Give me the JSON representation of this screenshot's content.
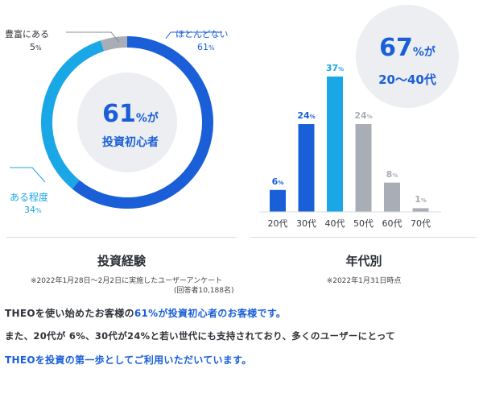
{
  "pie": {
    "center_big": "61",
    "center_unit": "%が",
    "center_sub": "投資初心者",
    "labels": [
      {
        "name": "豊富にある",
        "pct": "5",
        "unit": "%"
      },
      {
        "name": "ほとんどない",
        "pct": "61",
        "unit": "%"
      },
      {
        "name": "ある程度",
        "pct": "34",
        "unit": "%"
      }
    ],
    "title": "投資経験",
    "note1": "※2022年1月28日〜2月2日に実施したユーザーアンケート",
    "note2": "(回答者10,188名)",
    "colors": {
      "none": "#1a5fd8",
      "some": "#1aa7e6",
      "rich": "#a9adb5"
    }
  },
  "age": {
    "bubble_big": "67",
    "bubble_unit": "%が",
    "bubble_sub": "20〜40代",
    "title": "年代別",
    "note": "※2022年1月31日時点"
  },
  "chart_data": [
    {
      "type": "pie",
      "categories": [
        "ほとんどない",
        "ある程度",
        "豊富にある"
      ],
      "values": [
        61,
        34,
        5
      ],
      "title": "投資経験"
    },
    {
      "type": "bar",
      "categories": [
        "20代",
        "30代",
        "40代",
        "50代",
        "60代",
        "70代"
      ],
      "values": [
        6,
        24,
        37,
        24,
        8,
        1
      ],
      "value_labels": [
        "6%",
        "24%",
        "37%",
        "24%",
        "8%",
        "1%"
      ],
      "colors": [
        "#1a5fd8",
        "#1a5fd8",
        "#1aa7e6",
        "#a9adb5",
        "#a9adb5",
        "#a9adb5"
      ],
      "title": "年代別"
    }
  ],
  "body": {
    "line1_a": "THEOを使い始めたお客様の",
    "line1_b": "61%が投資初心者のお客様です。",
    "line2": "また、20代が 6%、30代が24%と若い世代にも支持されており、多くのユーザーにとって",
    "line3": "THEOを投資の第一歩としてご利用いただいています。"
  }
}
